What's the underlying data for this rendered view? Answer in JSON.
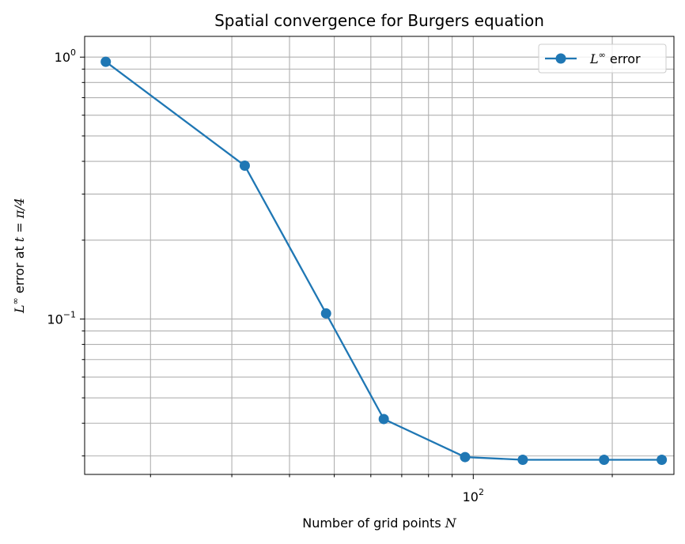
{
  "chart_data": {
    "type": "line",
    "title": "Spatial convergence for Burgers equation",
    "xlabel": "Number of grid points N",
    "ylabel": "L∞ error at t = π/4",
    "xscale": "log",
    "yscale": "log",
    "xlim": [
      14.4,
      272
    ],
    "ylim": [
      0.0255,
      1.2
    ],
    "grid": "both-major-minor",
    "legend_position": "top-right",
    "x_tick_labels": [
      {
        "base": "10",
        "exp": "2",
        "value": 100
      }
    ],
    "y_tick_labels": [
      {
        "base": "10",
        "exp": "0",
        "value": 1
      },
      {
        "base": "10",
        "exp": "−1",
        "value": 0.1
      }
    ],
    "series": [
      {
        "name": "L∞ error",
        "color": "#1f77b4",
        "marker": "circle",
        "x": [
          16,
          32,
          48,
          64,
          96,
          128,
          192,
          256
        ],
        "y": [
          0.96,
          0.385,
          0.105,
          0.0415,
          0.0297,
          0.029,
          0.029,
          0.029
        ]
      }
    ]
  },
  "text": {
    "title": "Spatial convergence for Burgers equation",
    "xlabel_prefix": "Number of grid points ",
    "xlabel_var": "N",
    "ylabel_var": "L",
    "ylabel_sup": "∞",
    "ylabel_mid": " error at ",
    "ylabel_expr": "t = π/4",
    "legend_var": "L",
    "legend_sup": "∞",
    "legend_suffix": " error"
  }
}
